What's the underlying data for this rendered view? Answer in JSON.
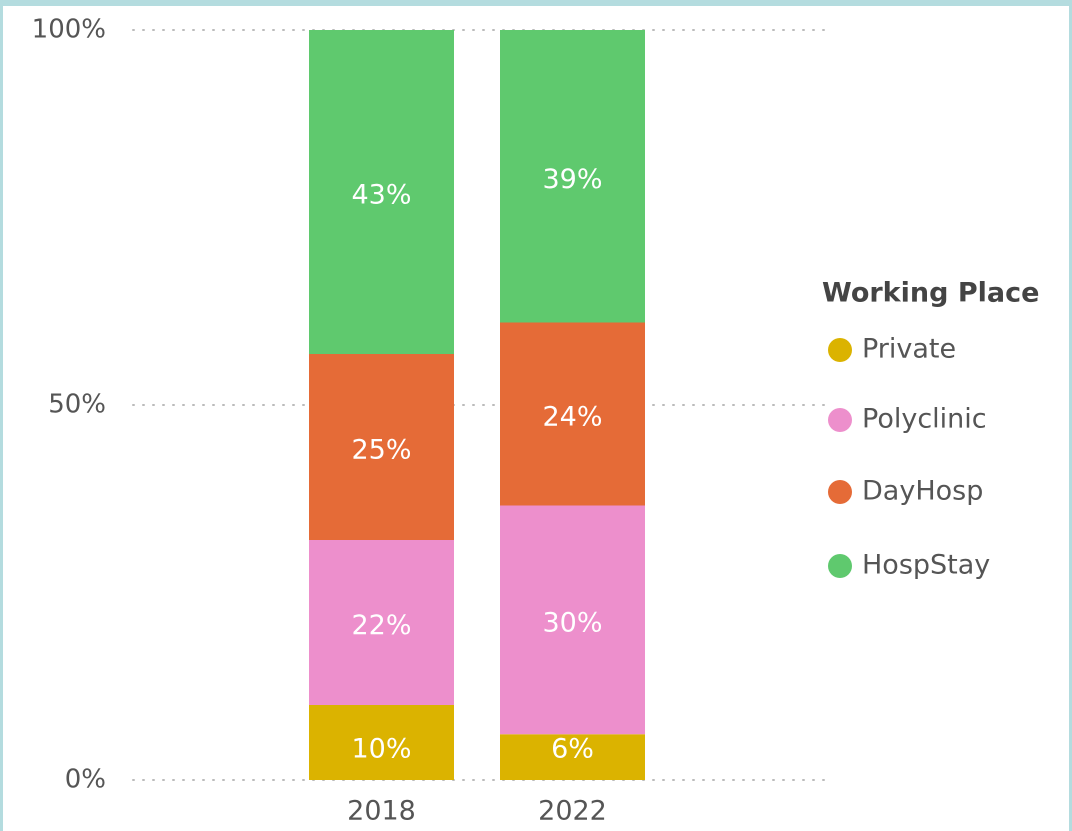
{
  "chart_data": {
    "type": "stacked_bar",
    "categories": [
      "2018",
      "2022"
    ],
    "legend_title": "Working Place",
    "series": [
      {
        "name": "Private",
        "color": "#dbb300",
        "values": [
          10,
          6.1
        ],
        "value_labels": [
          "10%",
          "6%"
        ]
      },
      {
        "name": "Polyclinic",
        "color": "#ed8fcc",
        "values": [
          22,
          30.5
        ],
        "value_labels": [
          "22%",
          "30%"
        ]
      },
      {
        "name": "DayHosp",
        "color": "#e56b37",
        "values": [
          24.8,
          24.4
        ],
        "value_labels": [
          "25%",
          "24%"
        ]
      },
      {
        "name": "HospStay",
        "color": "#5fc96e",
        "values": [
          43.2,
          39
        ],
        "value_labels": [
          "43%",
          "39%"
        ]
      }
    ],
    "ylim": [
      0,
      100
    ],
    "yticks": [
      {
        "value": 0,
        "label": "0%"
      },
      {
        "value": 50,
        "label": "50%"
      },
      {
        "value": 100,
        "label": "100%"
      }
    ],
    "grid": true,
    "legend": "right"
  }
}
